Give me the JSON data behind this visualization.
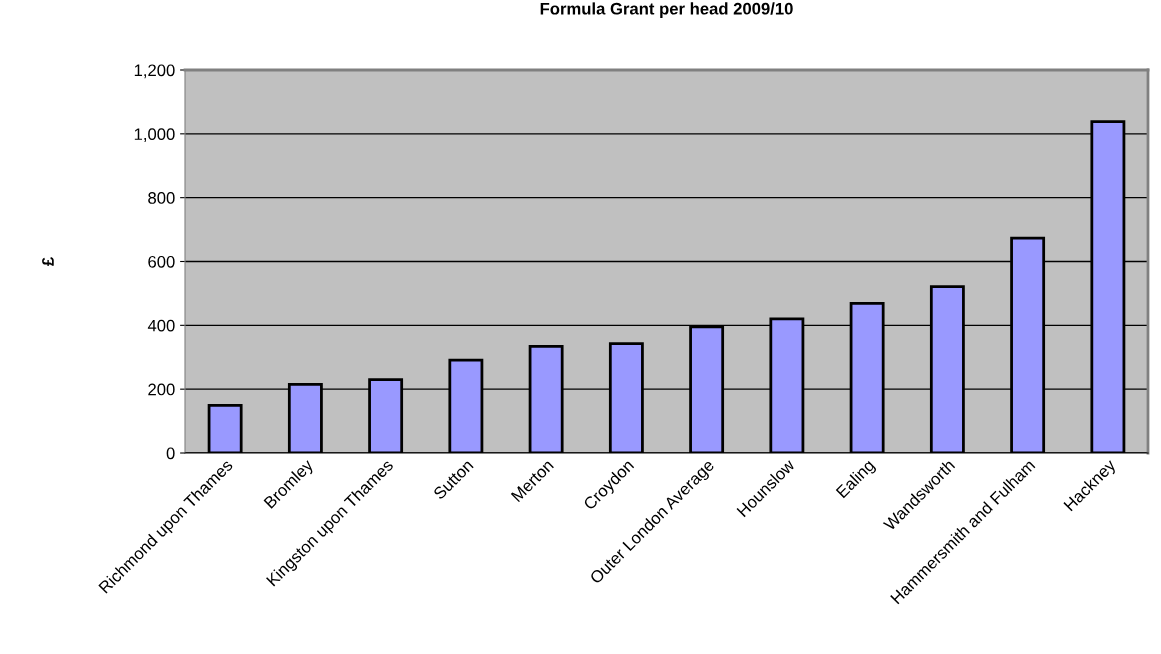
{
  "chart_data": {
    "type": "bar",
    "title": "Formula Grant per head 2009/10",
    "ylabel": "£",
    "categories": [
      "Richmond upon Thames",
      "Bromley",
      "Kingston upon Thames",
      "Sutton",
      "Merton",
      "Croydon",
      "Outer London Average",
      "Hounslow",
      "Ealing",
      "Wandsworth",
      "Hammersmith and Fulham",
      "Hackney"
    ],
    "values": [
      149,
      215,
      230,
      291,
      334,
      343,
      395,
      420,
      469,
      521,
      673,
      1038
    ],
    "color": "#9999ff",
    "ylim": [
      0,
      1200
    ],
    "yticks": [
      0,
      200,
      400,
      600,
      800,
      {
        "value": 1000,
        "label": "1,000"
      },
      {
        "value": 1200,
        "label": "1,200"
      }
    ],
    "grid": "y"
  }
}
